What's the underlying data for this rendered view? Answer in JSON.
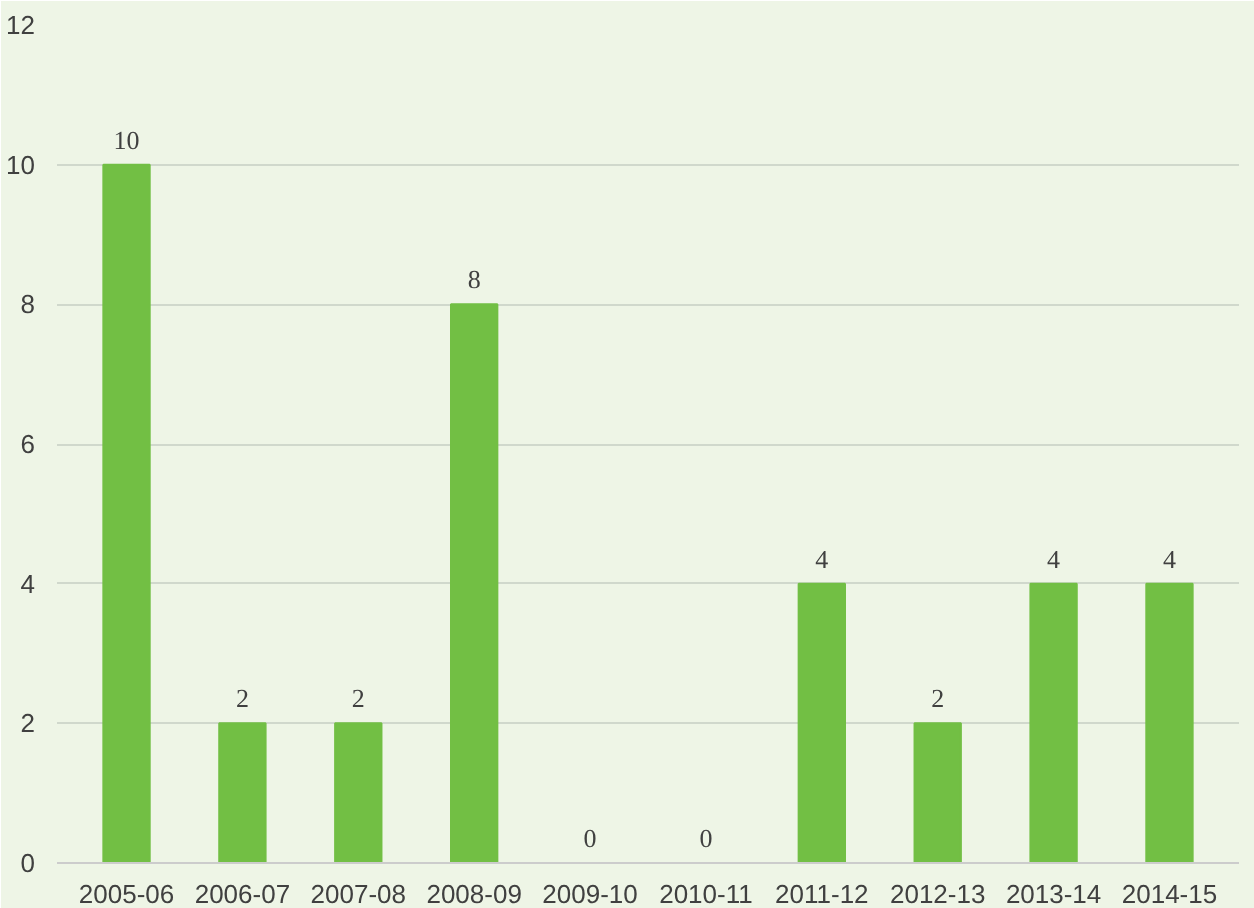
{
  "chart_data": {
    "type": "bar",
    "categories": [
      "2005-06",
      "2006-07",
      "2007-08",
      "2008-09",
      "2009-10",
      "2010-11",
      "2011-12",
      "2012-13",
      "2013-14",
      "2014-15"
    ],
    "values": [
      10,
      2,
      2,
      8,
      0,
      0,
      4,
      2,
      4,
      4
    ],
    "color": "#72bf44",
    "ylim": [
      0,
      12
    ],
    "yticks": [
      0,
      2,
      4,
      6,
      8,
      10,
      12
    ],
    "grid": "y",
    "data_labels": true
  }
}
